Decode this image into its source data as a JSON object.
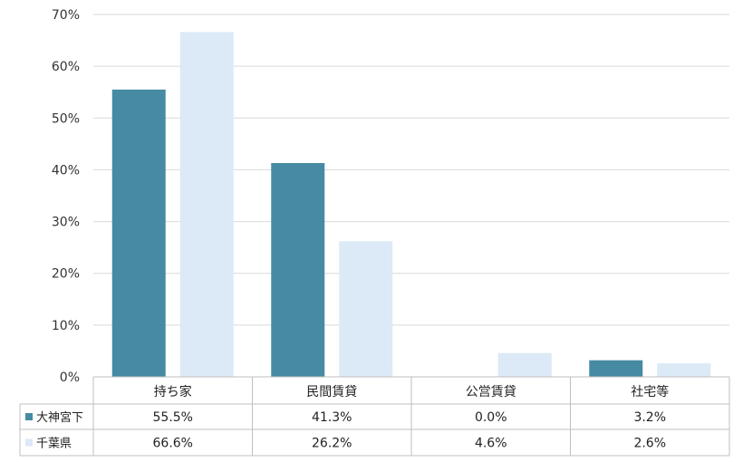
{
  "chart_data": {
    "type": "bar",
    "categories": [
      "持ち家",
      "民間賃貸",
      "公営賃貸",
      "社宅等"
    ],
    "series": [
      {
        "name": "大神宮下",
        "values": [
          55.5,
          41.3,
          0.0,
          3.2
        ],
        "labels": [
          "55.5%",
          "41.3%",
          "0.0%",
          "3.2%"
        ],
        "color": "#468ba3"
      },
      {
        "name": "千葉県",
        "values": [
          66.6,
          26.2,
          4.6,
          2.6
        ],
        "labels": [
          "66.6%",
          "26.2%",
          "4.6%",
          "2.6%"
        ],
        "color": "#dce9f6"
      }
    ],
    "ylim": [
      0,
      70
    ],
    "yticks": [
      "0%",
      "10%",
      "20%",
      "30%",
      "40%",
      "50%",
      "60%",
      "70%"
    ],
    "grid": true,
    "legend": "data-table-left"
  }
}
